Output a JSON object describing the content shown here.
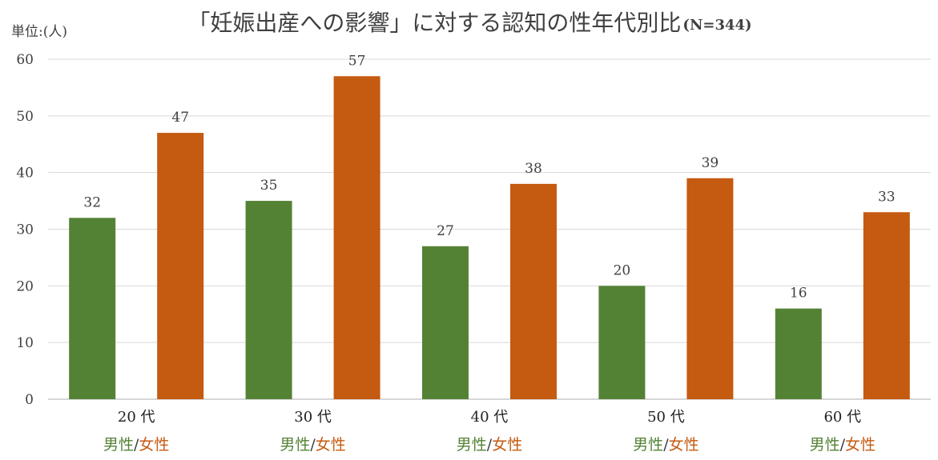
{
  "chart_data": {
    "type": "bar",
    "title": "「妊娠出産への影響」に対する認知の性年代別比",
    "subtitle": "(N=344)",
    "unit_label": "単位:(人)",
    "ylim": [
      0,
      60
    ],
    "yticks": [
      "0",
      "10",
      "20",
      "30",
      "40",
      "50",
      "60"
    ],
    "grid": true,
    "categories": [
      "20 代",
      "30 代",
      "40 代",
      "50 代",
      "60 代"
    ],
    "category_sublabels": {
      "male": "男性",
      "separator": "/",
      "female": "女性"
    },
    "series": [
      {
        "name": "男性",
        "color": "#548235",
        "values": [
          32,
          35,
          27,
          20,
          16
        ]
      },
      {
        "name": "女性",
        "color": "#c55a11",
        "values": [
          47,
          57,
          38,
          39,
          33
        ]
      }
    ]
  }
}
